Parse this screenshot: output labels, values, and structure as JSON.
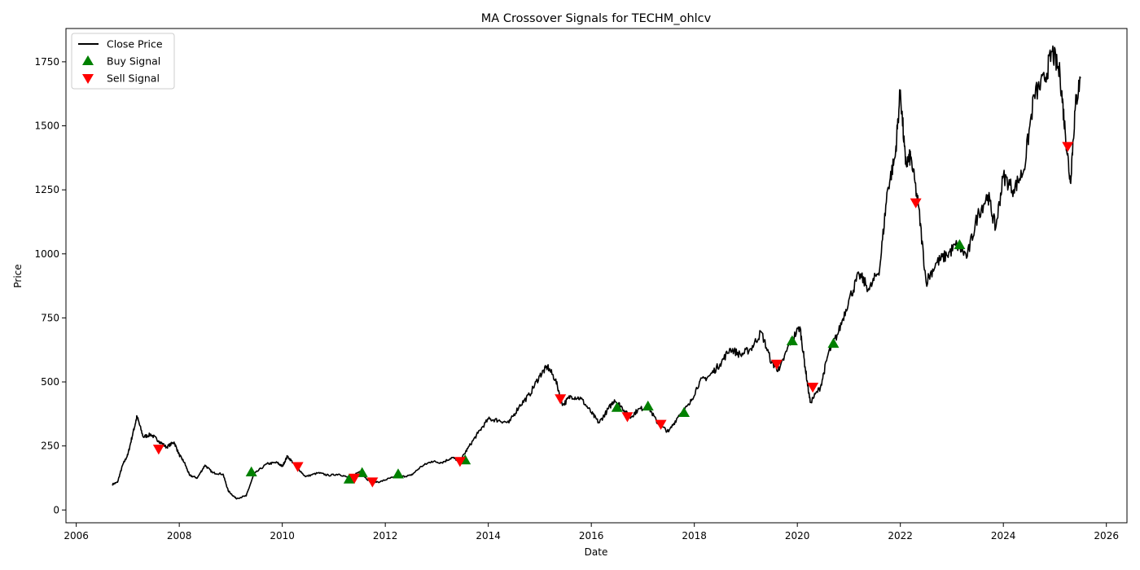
{
  "chart_data": {
    "type": "line",
    "title": "MA Crossover Signals for TECHM_ohlcv",
    "xlabel": "Date",
    "ylabel": "Price",
    "xlim": [
      2005.8,
      2026.4
    ],
    "ylim": [
      -50,
      1880
    ],
    "x_ticks": [
      2006,
      2008,
      2010,
      2012,
      2014,
      2016,
      2018,
      2020,
      2022,
      2024,
      2026
    ],
    "y_ticks": [
      0,
      250,
      500,
      750,
      1000,
      1250,
      1500,
      1750
    ],
    "grid": false,
    "legend": {
      "position": "top-left",
      "entries": [
        {
          "label": "Close Price",
          "marker": "line",
          "color": "#000000"
        },
        {
          "label": "Buy Signal",
          "marker": "triangle-up",
          "color": "#008000"
        },
        {
          "label": "Sell Signal",
          "marker": "triangle-down",
          "color": "#ff0000"
        }
      ]
    },
    "series": [
      {
        "name": "Close Price",
        "color": "#000000",
        "points": [
          [
            2006.7,
            100
          ],
          [
            2006.8,
            108
          ],
          [
            2006.9,
            175
          ],
          [
            2007.0,
            215
          ],
          [
            2007.1,
            300
          ],
          [
            2007.18,
            365
          ],
          [
            2007.3,
            285
          ],
          [
            2007.45,
            295
          ],
          [
            2007.6,
            270
          ],
          [
            2007.75,
            245
          ],
          [
            2007.9,
            265
          ],
          [
            2008.0,
            215
          ],
          [
            2008.1,
            185
          ],
          [
            2008.2,
            135
          ],
          [
            2008.35,
            125
          ],
          [
            2008.5,
            175
          ],
          [
            2008.65,
            145
          ],
          [
            2008.85,
            140
          ],
          [
            2008.95,
            75
          ],
          [
            2009.1,
            45
          ],
          [
            2009.3,
            55
          ],
          [
            2009.45,
            140
          ],
          [
            2009.7,
            180
          ],
          [
            2009.9,
            185
          ],
          [
            2010.0,
            170
          ],
          [
            2010.1,
            210
          ],
          [
            2010.25,
            175
          ],
          [
            2010.45,
            130
          ],
          [
            2010.7,
            145
          ],
          [
            2010.9,
            135
          ],
          [
            2011.1,
            140
          ],
          [
            2011.3,
            125
          ],
          [
            2011.5,
            150
          ],
          [
            2011.7,
            110
          ],
          [
            2011.9,
            110
          ],
          [
            2012.1,
            125
          ],
          [
            2012.3,
            130
          ],
          [
            2012.5,
            135
          ],
          [
            2012.7,
            170
          ],
          [
            2012.9,
            190
          ],
          [
            2013.1,
            185
          ],
          [
            2013.3,
            205
          ],
          [
            2013.45,
            190
          ],
          [
            2013.6,
            240
          ],
          [
            2013.8,
            300
          ],
          [
            2014.0,
            355
          ],
          [
            2014.2,
            350
          ],
          [
            2014.4,
            340
          ],
          [
            2014.6,
            405
          ],
          [
            2014.8,
            450
          ],
          [
            2015.0,
            525
          ],
          [
            2015.15,
            560
          ],
          [
            2015.3,
            510
          ],
          [
            2015.45,
            410
          ],
          [
            2015.6,
            445
          ],
          [
            2015.8,
            435
          ],
          [
            2016.0,
            380
          ],
          [
            2016.15,
            340
          ],
          [
            2016.3,
            385
          ],
          [
            2016.45,
            430
          ],
          [
            2016.6,
            400
          ],
          [
            2016.75,
            360
          ],
          [
            2016.9,
            390
          ],
          [
            2017.1,
            405
          ],
          [
            2017.3,
            335
          ],
          [
            2017.5,
            305
          ],
          [
            2017.7,
            370
          ],
          [
            2017.9,
            410
          ],
          [
            2018.1,
            500
          ],
          [
            2018.3,
            525
          ],
          [
            2018.5,
            570
          ],
          [
            2018.7,
            630
          ],
          [
            2018.9,
            605
          ],
          [
            2019.1,
            630
          ],
          [
            2019.3,
            695
          ],
          [
            2019.5,
            575
          ],
          [
            2019.65,
            545
          ],
          [
            2019.85,
            650
          ],
          [
            2020.05,
            715
          ],
          [
            2020.15,
            560
          ],
          [
            2020.25,
            420
          ],
          [
            2020.45,
            480
          ],
          [
            2020.6,
            610
          ],
          [
            2020.8,
            695
          ],
          [
            2021.0,
            820
          ],
          [
            2021.2,
            920
          ],
          [
            2021.4,
            860
          ],
          [
            2021.6,
            945
          ],
          [
            2021.75,
            1250
          ],
          [
            2021.9,
            1380
          ],
          [
            2022.0,
            1640
          ],
          [
            2022.1,
            1350
          ],
          [
            2022.2,
            1380
          ],
          [
            2022.35,
            1190
          ],
          [
            2022.5,
            890
          ],
          [
            2022.7,
            965
          ],
          [
            2022.9,
            995
          ],
          [
            2023.1,
            1035
          ],
          [
            2023.3,
            990
          ],
          [
            2023.5,
            1150
          ],
          [
            2023.7,
            1230
          ],
          [
            2023.85,
            1100
          ],
          [
            2024.0,
            1305
          ],
          [
            2024.2,
            1250
          ],
          [
            2024.4,
            1330
          ],
          [
            2024.6,
            1620
          ],
          [
            2024.8,
            1680
          ],
          [
            2024.95,
            1790
          ],
          [
            2025.1,
            1700
          ],
          [
            2025.2,
            1480
          ],
          [
            2025.3,
            1280
          ],
          [
            2025.4,
            1580
          ],
          [
            2025.5,
            1690
          ]
        ]
      },
      {
        "name": "Buy Signal",
        "color": "#008000",
        "points": [
          [
            2009.4,
            148
          ],
          [
            2011.3,
            120
          ],
          [
            2011.55,
            145
          ],
          [
            2012.25,
            140
          ],
          [
            2013.55,
            195
          ],
          [
            2016.5,
            400
          ],
          [
            2017.1,
            405
          ],
          [
            2017.8,
            380
          ],
          [
            2019.9,
            660
          ],
          [
            2020.7,
            650
          ],
          [
            2023.15,
            1035
          ]
        ]
      },
      {
        "name": "Sell Signal",
        "color": "#ff0000",
        "points": [
          [
            2007.6,
            238
          ],
          [
            2010.3,
            170
          ],
          [
            2011.4,
            125
          ],
          [
            2011.75,
            110
          ],
          [
            2013.45,
            190
          ],
          [
            2015.4,
            435
          ],
          [
            2016.7,
            365
          ],
          [
            2017.35,
            335
          ],
          [
            2019.6,
            570
          ],
          [
            2020.3,
            480
          ],
          [
            2022.3,
            1200
          ],
          [
            2025.25,
            1420
          ]
        ]
      }
    ]
  }
}
